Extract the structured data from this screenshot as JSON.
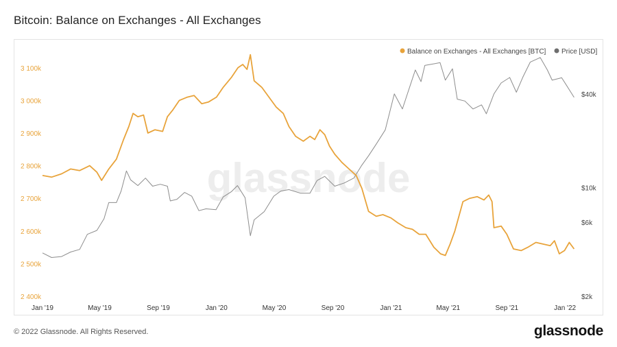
{
  "header": {
    "title": "Bitcoin: Balance on Exchanges - All Exchanges"
  },
  "footer": {
    "copyright": "© 2022 Glassnode. All Rights Reserved.",
    "brand": "glassnode"
  },
  "chart_data": {
    "type": "line",
    "watermark": "glassnode",
    "legend_position": "top-right",
    "grid": false,
    "x_axis": {
      "type": "date",
      "range": [
        "2019-01-01",
        "2022-01-31"
      ],
      "ticks": [
        {
          "label": "Jan '19",
          "date": "2019-01-01"
        },
        {
          "label": "May '19",
          "date": "2019-05-01"
        },
        {
          "label": "Sep '19",
          "date": "2019-09-01"
        },
        {
          "label": "Jan '20",
          "date": "2020-01-01"
        },
        {
          "label": "May '20",
          "date": "2020-05-01"
        },
        {
          "label": "Sep '20",
          "date": "2020-09-01"
        },
        {
          "label": "Jan '21",
          "date": "2021-01-01"
        },
        {
          "label": "May '21",
          "date": "2021-05-01"
        },
        {
          "label": "Sep '21",
          "date": "2021-09-01"
        },
        {
          "label": "Jan '22",
          "date": "2022-01-01"
        }
      ]
    },
    "y_left": {
      "scale": "linear",
      "range": [
        2400000,
        3150000
      ],
      "ticks": [
        {
          "label": "2 400k",
          "value": 2400000
        },
        {
          "label": "2 500k",
          "value": 2500000
        },
        {
          "label": "2 600k",
          "value": 2600000
        },
        {
          "label": "2 700k",
          "value": 2700000
        },
        {
          "label": "2 800k",
          "value": 2800000
        },
        {
          "label": "2 900k",
          "value": 2900000
        },
        {
          "label": "3 000k",
          "value": 3000000
        },
        {
          "label": "3 100k",
          "value": 3100000
        }
      ]
    },
    "y_right": {
      "scale": "log",
      "range": [
        2000,
        75000
      ],
      "ticks": [
        {
          "label": "$2k",
          "value": 2000
        },
        {
          "label": "$6k",
          "value": 6000
        },
        {
          "label": "$10k",
          "value": 10000
        },
        {
          "label": "$40k",
          "value": 40000
        }
      ]
    },
    "series": [
      {
        "name": "Balance on Exchanges - All Exchanges [BTC]",
        "axis": "left",
        "color": "#e8a33a",
        "points": [
          [
            "2019-01-01",
            2770000
          ],
          [
            "2019-01-20",
            2765000
          ],
          [
            "2019-02-10",
            2775000
          ],
          [
            "2019-03-01",
            2790000
          ],
          [
            "2019-03-20",
            2785000
          ],
          [
            "2019-04-10",
            2800000
          ],
          [
            "2019-04-25",
            2780000
          ],
          [
            "2019-05-05",
            2755000
          ],
          [
            "2019-05-20",
            2790000
          ],
          [
            "2019-06-05",
            2820000
          ],
          [
            "2019-06-20",
            2880000
          ],
          [
            "2019-07-01",
            2920000
          ],
          [
            "2019-07-10",
            2960000
          ],
          [
            "2019-07-20",
            2950000
          ],
          [
            "2019-08-01",
            2955000
          ],
          [
            "2019-08-10",
            2900000
          ],
          [
            "2019-08-25",
            2910000
          ],
          [
            "2019-09-10",
            2905000
          ],
          [
            "2019-09-20",
            2950000
          ],
          [
            "2019-10-01",
            2970000
          ],
          [
            "2019-10-15",
            3000000
          ],
          [
            "2019-11-01",
            3010000
          ],
          [
            "2019-11-15",
            3015000
          ],
          [
            "2019-12-01",
            2990000
          ],
          [
            "2019-12-15",
            2995000
          ],
          [
            "2020-01-01",
            3010000
          ],
          [
            "2020-01-15",
            3040000
          ],
          [
            "2020-02-01",
            3070000
          ],
          [
            "2020-02-15",
            3100000
          ],
          [
            "2020-02-25",
            3110000
          ],
          [
            "2020-03-05",
            3095000
          ],
          [
            "2020-03-12",
            3140000
          ],
          [
            "2020-03-20",
            3060000
          ],
          [
            "2020-04-05",
            3040000
          ],
          [
            "2020-04-20",
            3010000
          ],
          [
            "2020-05-05",
            2980000
          ],
          [
            "2020-05-20",
            2960000
          ],
          [
            "2020-06-01",
            2920000
          ],
          [
            "2020-06-15",
            2890000
          ],
          [
            "2020-07-01",
            2875000
          ],
          [
            "2020-07-15",
            2890000
          ],
          [
            "2020-07-25",
            2880000
          ],
          [
            "2020-08-05",
            2910000
          ],
          [
            "2020-08-15",
            2895000
          ],
          [
            "2020-08-25",
            2860000
          ],
          [
            "2020-09-05",
            2835000
          ],
          [
            "2020-09-20",
            2810000
          ],
          [
            "2020-10-05",
            2790000
          ],
          [
            "2020-10-20",
            2770000
          ],
          [
            "2020-11-01",
            2730000
          ],
          [
            "2020-11-15",
            2660000
          ],
          [
            "2020-12-01",
            2645000
          ],
          [
            "2020-12-15",
            2650000
          ],
          [
            "2021-01-01",
            2640000
          ],
          [
            "2021-01-15",
            2625000
          ],
          [
            "2021-02-01",
            2610000
          ],
          [
            "2021-02-15",
            2605000
          ],
          [
            "2021-03-01",
            2590000
          ],
          [
            "2021-03-15",
            2590000
          ],
          [
            "2021-04-01",
            2550000
          ],
          [
            "2021-04-15",
            2530000
          ],
          [
            "2021-04-25",
            2525000
          ],
          [
            "2021-05-05",
            2560000
          ],
          [
            "2021-05-15",
            2600000
          ],
          [
            "2021-06-01",
            2690000
          ],
          [
            "2021-06-15",
            2700000
          ],
          [
            "2021-07-01",
            2705000
          ],
          [
            "2021-07-15",
            2695000
          ],
          [
            "2021-07-25",
            2710000
          ],
          [
            "2021-08-01",
            2690000
          ],
          [
            "2021-08-05",
            2610000
          ],
          [
            "2021-08-20",
            2615000
          ],
          [
            "2021-09-01",
            2590000
          ],
          [
            "2021-09-15",
            2545000
          ],
          [
            "2021-10-01",
            2540000
          ],
          [
            "2021-10-15",
            2550000
          ],
          [
            "2021-11-01",
            2565000
          ],
          [
            "2021-11-15",
            2560000
          ],
          [
            "2021-12-01",
            2555000
          ],
          [
            "2021-12-10",
            2570000
          ],
          [
            "2021-12-20",
            2530000
          ],
          [
            "2021-12-31",
            2540000
          ],
          [
            "2022-01-10",
            2565000
          ],
          [
            "2022-01-20",
            2545000
          ]
        ]
      },
      {
        "name": "Price [USD]",
        "axis": "right",
        "color": "#8c8c8c",
        "points": [
          [
            "2019-01-01",
            3800
          ],
          [
            "2019-01-20",
            3550
          ],
          [
            "2019-02-10",
            3600
          ],
          [
            "2019-03-01",
            3850
          ],
          [
            "2019-03-20",
            4000
          ],
          [
            "2019-04-05",
            5000
          ],
          [
            "2019-04-25",
            5300
          ],
          [
            "2019-05-10",
            6300
          ],
          [
            "2019-05-20",
            8000
          ],
          [
            "2019-06-05",
            8000
          ],
          [
            "2019-06-15",
            9500
          ],
          [
            "2019-06-26",
            12800
          ],
          [
            "2019-07-05",
            11200
          ],
          [
            "2019-07-20",
            10300
          ],
          [
            "2019-08-05",
            11500
          ],
          [
            "2019-08-20",
            10200
          ],
          [
            "2019-09-05",
            10500
          ],
          [
            "2019-09-20",
            10200
          ],
          [
            "2019-09-26",
            8200
          ],
          [
            "2019-10-10",
            8400
          ],
          [
            "2019-10-26",
            9300
          ],
          [
            "2019-11-10",
            8800
          ],
          [
            "2019-11-25",
            7100
          ],
          [
            "2019-12-10",
            7300
          ],
          [
            "2019-12-31",
            7200
          ],
          [
            "2020-01-15",
            8700
          ],
          [
            "2020-02-01",
            9400
          ],
          [
            "2020-02-14",
            10300
          ],
          [
            "2020-03-01",
            8600
          ],
          [
            "2020-03-12",
            4900
          ],
          [
            "2020-03-20",
            6200
          ],
          [
            "2020-04-10",
            7000
          ],
          [
            "2020-04-30",
            8800
          ],
          [
            "2020-05-15",
            9500
          ],
          [
            "2020-06-01",
            9700
          ],
          [
            "2020-06-25",
            9200
          ],
          [
            "2020-07-15",
            9200
          ],
          [
            "2020-07-30",
            11100
          ],
          [
            "2020-08-15",
            11800
          ],
          [
            "2020-09-05",
            10200
          ],
          [
            "2020-09-25",
            10700
          ],
          [
            "2020-10-15",
            11500
          ],
          [
            "2020-10-31",
            13800
          ],
          [
            "2020-11-15",
            16000
          ],
          [
            "2020-12-01",
            19000
          ],
          [
            "2020-12-20",
            23500
          ],
          [
            "2021-01-08",
            40000
          ],
          [
            "2021-01-25",
            32000
          ],
          [
            "2021-02-10",
            45000
          ],
          [
            "2021-02-21",
            57000
          ],
          [
            "2021-03-05",
            48000
          ],
          [
            "2021-03-13",
            61000
          ],
          [
            "2021-04-14",
            63500
          ],
          [
            "2021-04-25",
            49000
          ],
          [
            "2021-05-10",
            58000
          ],
          [
            "2021-05-20",
            37000
          ],
          [
            "2021-06-05",
            36000
          ],
          [
            "2021-06-22",
            32000
          ],
          [
            "2021-07-10",
            34000
          ],
          [
            "2021-07-20",
            29800
          ],
          [
            "2021-08-05",
            40000
          ],
          [
            "2021-08-20",
            47000
          ],
          [
            "2021-09-07",
            51000
          ],
          [
            "2021-09-21",
            41000
          ],
          [
            "2021-10-05",
            51500
          ],
          [
            "2021-10-20",
            64000
          ],
          [
            "2021-11-10",
            68500
          ],
          [
            "2021-11-25",
            57000
          ],
          [
            "2021-12-05",
            49000
          ],
          [
            "2021-12-25",
            50800
          ],
          [
            "2022-01-05",
            45000
          ],
          [
            "2022-01-20",
            38000
          ]
        ]
      }
    ]
  }
}
